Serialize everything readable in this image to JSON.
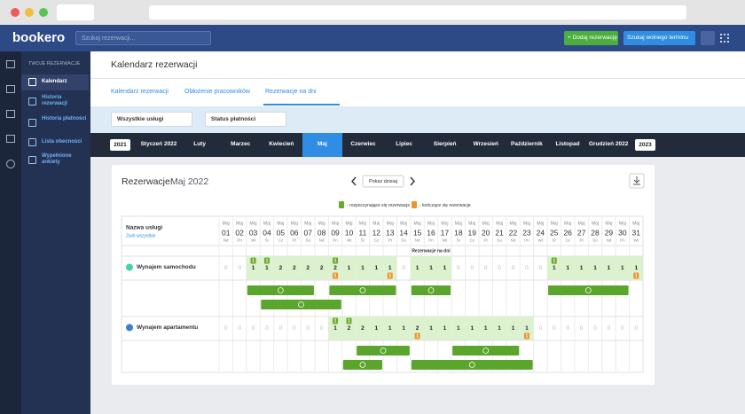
{
  "header": {
    "logo": "bookero",
    "search_placeholder": "Szukaj rezerwacji...",
    "add_button": "+ Dodaj rezerwację",
    "search_button": "Szukaj wolnego terminu"
  },
  "sidebar": {
    "section": "TWOJE REZERWACJE",
    "items": [
      "Kalendarz",
      "Historia rezerwacji",
      "Historia płatności",
      "Lista obecności",
      "Wypełnione ankiety"
    ],
    "active": 0
  },
  "page": {
    "title": "Kalendarz rezerwacji",
    "tabs": [
      "Kalendarz rezerwacji",
      "Obłożenie pracowników",
      "Rezerwacje na dni"
    ],
    "active_tab": 2,
    "filters": [
      "Wszystkie usługi",
      "Status płatności"
    ],
    "year_prev": "2021",
    "year_next": "2023",
    "months": [
      "Styczeń 2022",
      "Luty",
      "Marzec",
      "Kwiecień",
      "Maj",
      "Czerwiec",
      "Lipiec",
      "Sierpień",
      "Wrzesień",
      "Październik",
      "Listopad",
      "Grudzień 2022"
    ],
    "active_month": 4
  },
  "calendar": {
    "title_prefix": "Rezerwacje:",
    "title_month": "Maj 2022",
    "today_button": "Pokaż dzisiaj",
    "legend": [
      "- rozpoczynające się rezerwacje",
      "- kończące się rezerwacje"
    ],
    "legend_colors": [
      "#6aaa2a",
      "#f0932b"
    ],
    "name_header": "Nazwa usługi",
    "collapse": "Zwiń wszystkie",
    "month_label": "Maj",
    "subheader": "Rezerwacje na dni",
    "days": [
      "01",
      "02",
      "03",
      "04",
      "05",
      "06",
      "07",
      "08",
      "09",
      "10",
      "11",
      "12",
      "13",
      "14",
      "15",
      "16",
      "17",
      "18",
      "19",
      "20",
      "21",
      "22",
      "23",
      "24",
      "25",
      "26",
      "27",
      "28",
      "29",
      "30",
      "31"
    ],
    "weekdays": [
      "Nd",
      "Pn",
      "Wt",
      "Śr",
      "Cz",
      "Pt",
      "So",
      "Nd",
      "Pn",
      "Wt",
      "Śr",
      "Cz",
      "Pt",
      "So",
      "Nd",
      "Pn",
      "Wt",
      "Śr",
      "Cz",
      "Pt",
      "So",
      "Nd",
      "Pn",
      "Wt",
      "Śr",
      "Cz",
      "Pt",
      "So",
      "Nd",
      "Pn",
      "Wt"
    ],
    "services": [
      {
        "name": "Wynajem samochodu",
        "color": "#3fd6a6",
        "counts": [
          0,
          0,
          1,
          1,
          2,
          2,
          2,
          2,
          2,
          1,
          1,
          1,
          1,
          0,
          1,
          1,
          1,
          0,
          0,
          0,
          0,
          0,
          0,
          0,
          1,
          1,
          1,
          1,
          1,
          1,
          1
        ],
        "starts": [
          {
            "day": "03",
            "count": 1
          },
          {
            "day": "04",
            "count": 1
          },
          {
            "day": "09",
            "count": 1
          },
          {
            "day": "25",
            "count": 1
          }
        ],
        "ends": [
          {
            "day": "09",
            "count": 1
          },
          {
            "day": "13",
            "count": 1
          },
          {
            "day": "31",
            "count": 1
          }
        ],
        "lanes": [
          [
            {
              "from": "03",
              "to": "07"
            },
            {
              "from": "09",
              "to": "13"
            },
            {
              "from": "15",
              "to": "17"
            },
            {
              "from": "25",
              "to": "30"
            }
          ],
          [
            {
              "from": "04",
              "to": "09"
            }
          ]
        ]
      },
      {
        "name": "Wynajem apartamentu",
        "color": "#3b7dd8",
        "counts": [
          0,
          0,
          0,
          0,
          0,
          0,
          0,
          0,
          1,
          2,
          2,
          1,
          1,
          1,
          2,
          1,
          1,
          1,
          1,
          1,
          1,
          1,
          1,
          0,
          0,
          0,
          0,
          0,
          0,
          0,
          0
        ],
        "starts": [
          {
            "day": "09",
            "count": 1
          },
          {
            "day": "10",
            "count": 1
          }
        ],
        "ends": [
          {
            "day": "15",
            "count": 1
          },
          {
            "day": "23",
            "count": 1
          }
        ],
        "lanes": [
          [
            {
              "from": "11",
              "to": "14"
            },
            {
              "from": "18",
              "to": "22"
            }
          ],
          [
            {
              "from": "10",
              "to": "12"
            },
            {
              "from": "15",
              "to": "23"
            }
          ]
        ]
      }
    ]
  }
}
